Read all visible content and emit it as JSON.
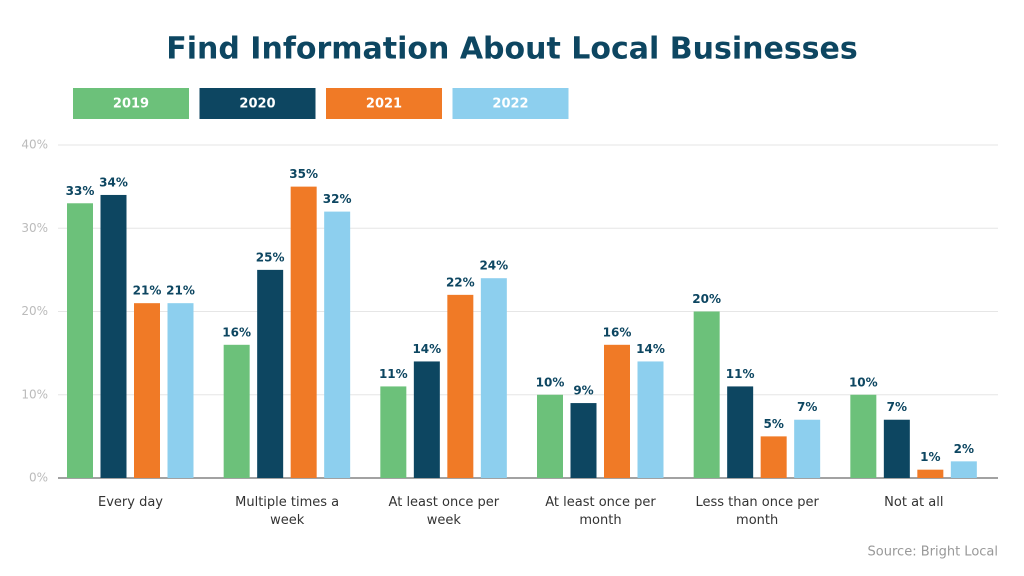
{
  "chart_data": {
    "type": "bar",
    "title": "Find Information About Local Businesses",
    "source": "Source: Bright Local",
    "categories": [
      "Every day",
      "Multiple times a week",
      "At least once per week",
      "At least once per month",
      "Less than once per month",
      "Not at all"
    ],
    "series": [
      {
        "name": "2019",
        "color": "#6cc17a",
        "values": [
          33,
          16,
          11,
          10,
          20,
          10
        ],
        "value_labels": [
          "33%",
          "16%",
          "11%",
          "10%",
          "20%",
          "10%"
        ]
      },
      {
        "name": "2020",
        "color": "#0d4661",
        "values": [
          34,
          25,
          14,
          9,
          11,
          7
        ],
        "value_labels": [
          "34%",
          "25%",
          "14%",
          "9%",
          "11%",
          "7%"
        ]
      },
      {
        "name": "2021",
        "color": "#f07a26",
        "values": [
          21,
          35,
          22,
          16,
          5,
          1
        ],
        "value_labels": [
          "21%",
          "35%",
          "22%",
          "16%",
          "5%",
          "1%"
        ]
      },
      {
        "name": "2022",
        "color": "#8dcfee",
        "values": [
          21,
          32,
          24,
          14,
          7,
          2
        ],
        "value_labels": [
          "21%",
          "32%",
          "24%",
          "14%",
          "7%",
          "2%"
        ]
      }
    ],
    "ylim": [
      0,
      40
    ],
    "yticks": [
      {
        "value": 0,
        "label": "0%"
      },
      {
        "value": 10,
        "label": "10%"
      },
      {
        "value": 20,
        "label": "20%"
      },
      {
        "value": 30,
        "label": "30%"
      },
      {
        "value": 40,
        "label": "40%"
      }
    ],
    "grid": true
  }
}
